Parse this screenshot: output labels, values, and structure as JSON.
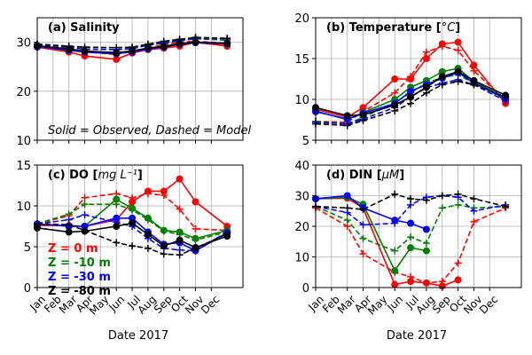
{
  "figure": {
    "footnote": "Solid = Observed, Dashed = Model",
    "xlabel": "Date 2017"
  },
  "chart_data": [
    {
      "type": "line",
      "title": "(a) Salinity",
      "title_bold": "(a) Salinity",
      "title_unit": "",
      "ylim": [
        10,
        35
      ],
      "yticks": [
        10,
        20,
        30
      ],
      "show_xticklabels": false,
      "grid": true,
      "categories": [
        "Jan",
        "Feb",
        "Mar",
        "Apr",
        "May",
        "Jun",
        "Jul",
        "Aug",
        "Sep",
        "Oct",
        "Nov",
        "Dec"
      ],
      "annotation": "Solid = Observed, Dashed = Model",
      "series": [
        {
          "color": "#ff0000",
          "style": "solid",
          "marker": "circle",
          "x": [
            0,
            2,
            3,
            5,
            6,
            7,
            8,
            9,
            10,
            12
          ],
          "values": [
            29.0,
            28.0,
            27.2,
            26.5,
            27.8,
            28.5,
            28.8,
            29.2,
            30.0,
            29.2
          ]
        },
        {
          "color": "#ff0000",
          "style": "dashed",
          "marker": "plus",
          "x": [
            0,
            2,
            3,
            5,
            6,
            7,
            8,
            9,
            10,
            12
          ],
          "values": [
            29.5,
            28.8,
            28.0,
            27.5,
            28.2,
            28.8,
            29.5,
            30.0,
            30.2,
            29.8
          ]
        },
        {
          "color": "#008000",
          "style": "solid",
          "marker": "circle",
          "x": [
            0,
            2,
            3,
            5,
            6,
            7,
            8,
            9,
            10,
            12
          ],
          "values": [
            29.2,
            28.3,
            28.0,
            27.6,
            28.2,
            28.8,
            29.2,
            29.7,
            30.0,
            29.6
          ]
        },
        {
          "color": "#008000",
          "style": "dashed",
          "marker": "plus",
          "x": [
            0,
            2,
            3,
            5,
            6,
            7,
            8,
            9,
            10,
            12
          ],
          "values": [
            29.5,
            28.9,
            28.6,
            28.5,
            28.8,
            29.4,
            29.8,
            30.3,
            30.7,
            30.4
          ]
        },
        {
          "color": "#0000ff",
          "style": "solid",
          "marker": "circle",
          "x": [
            0,
            2,
            3,
            5,
            6,
            7,
            8,
            9,
            10,
            12
          ],
          "values": [
            29.1,
            28.4,
            28.0,
            27.7,
            28.0,
            28.6,
            29.0,
            29.6,
            29.9,
            29.7
          ]
        },
        {
          "color": "#0000ff",
          "style": "dashed",
          "marker": "plus",
          "x": [
            0,
            2,
            3,
            5,
            6,
            7,
            8,
            9,
            10,
            12
          ],
          "values": [
            29.6,
            29.0,
            28.6,
            28.5,
            28.7,
            29.4,
            29.9,
            30.4,
            30.8,
            30.7
          ]
        },
        {
          "color": "#000000",
          "style": "solid",
          "marker": "circle",
          "x": [
            0,
            2,
            3,
            5,
            6,
            7,
            8,
            9,
            10,
            12
          ],
          "values": [
            29.3,
            28.6,
            28.2,
            27.9,
            28.2,
            28.8,
            29.1,
            29.7,
            30.0,
            29.8
          ]
        },
        {
          "color": "#000000",
          "style": "dashed",
          "marker": "plus",
          "x": [
            0,
            2,
            3,
            5,
            6,
            7,
            8,
            9,
            10,
            12
          ],
          "values": [
            29.6,
            29.2,
            29.0,
            28.9,
            29.0,
            29.6,
            30.2,
            30.6,
            31.0,
            30.8
          ]
        }
      ]
    },
    {
      "type": "line",
      "title": "(b) Temperature [°C]",
      "title_bold": "(b) Temperature [",
      "title_unit": "°C",
      "title_close": "]",
      "ylim": [
        5,
        20
      ],
      "yticks": [
        5,
        10,
        15,
        20
      ],
      "show_xticklabels": false,
      "grid": true,
      "categories": [
        "Jan",
        "Feb",
        "Mar",
        "Apr",
        "May",
        "Jun",
        "Jul",
        "Aug",
        "Sep",
        "Oct",
        "Nov",
        "Dec"
      ],
      "series": [
        {
          "color": "#ff0000",
          "style": "solid",
          "marker": "circle",
          "x": [
            0,
            2,
            3,
            5,
            6,
            7,
            8,
            9,
            10,
            12
          ],
          "values": [
            8.8,
            7.8,
            9.0,
            12.5,
            12.5,
            15.0,
            16.8,
            17.0,
            14.2,
            9.5
          ]
        },
        {
          "color": "#ff0000",
          "style": "dashed",
          "marker": "plus",
          "x": [
            0,
            2,
            3,
            5,
            6,
            7,
            8,
            9,
            10,
            12
          ],
          "values": [
            7.3,
            7.2,
            8.5,
            10.8,
            12.8,
            15.8,
            16.5,
            16.0,
            13.5,
            9.8
          ]
        },
        {
          "color": "#008000",
          "style": "solid",
          "marker": "circle",
          "x": [
            0,
            2,
            3,
            5,
            6,
            7,
            8,
            9,
            10,
            12
          ],
          "values": [
            8.6,
            7.5,
            8.4,
            10.0,
            11.5,
            12.3,
            13.4,
            13.8,
            12.2,
            10.2
          ]
        },
        {
          "color": "#008000",
          "style": "dashed",
          "marker": "plus",
          "x": [
            0,
            2,
            3,
            5,
            6,
            7,
            8,
            9,
            10,
            12
          ],
          "values": [
            7.3,
            7.0,
            7.8,
            9.6,
            10.8,
            12.0,
            12.7,
            13.0,
            12.0,
            10.0
          ]
        },
        {
          "color": "#0000ff",
          "style": "solid",
          "marker": "circle",
          "x": [
            0,
            2,
            3,
            5,
            6,
            7,
            8,
            9,
            10,
            12
          ],
          "values": [
            8.5,
            7.6,
            8.3,
            9.5,
            11.0,
            11.8,
            12.6,
            13.3,
            12.0,
            10.1
          ]
        },
        {
          "color": "#0000ff",
          "style": "dashed",
          "marker": "plus",
          "x": [
            0,
            2,
            3,
            5,
            6,
            7,
            8,
            9,
            10,
            12
          ],
          "values": [
            7.2,
            7.0,
            7.6,
            9.0,
            10.3,
            11.4,
            12.0,
            12.4,
            11.8,
            9.8
          ]
        },
        {
          "color": "#000000",
          "style": "solid",
          "marker": "circle",
          "x": [
            0,
            2,
            3,
            5,
            6,
            7,
            8,
            9,
            10,
            12
          ],
          "values": [
            9.0,
            8.0,
            8.1,
            9.3,
            10.3,
            11.5,
            12.8,
            13.4,
            12.3,
            10.5
          ]
        },
        {
          "color": "#000000",
          "style": "dashed",
          "marker": "plus",
          "x": [
            0,
            2,
            3,
            5,
            6,
            7,
            8,
            9,
            10,
            12
          ],
          "values": [
            7.0,
            6.8,
            7.4,
            8.6,
            9.5,
            10.8,
            11.8,
            12.2,
            11.8,
            10.3
          ]
        }
      ]
    },
    {
      "type": "line",
      "title": "(c) DO [mg L⁻¹]",
      "title_bold": "(c) DO [",
      "title_unit": "mg L⁻¹",
      "title_close": "]",
      "ylim": [
        0,
        15
      ],
      "yticks": [
        0,
        5,
        10,
        15
      ],
      "show_xticklabels": true,
      "grid": true,
      "categories": [
        "Jan",
        "Feb",
        "Mar",
        "Apr",
        "May",
        "Jun",
        "Jul",
        "Aug",
        "Sep",
        "Oct",
        "Nov",
        "Dec"
      ],
      "legend": {
        "position": "lower-left",
        "entries": [
          {
            "label": "Z =   0 m",
            "color": "#ff0000"
          },
          {
            "label": "Z =  -10 m",
            "color": "#008000"
          },
          {
            "label": "Z =  -30 m",
            "color": "#0000ff"
          },
          {
            "label": "Z =  -80 m",
            "color": "#000000"
          }
        ]
      },
      "series": [
        {
          "color": "#ff0000",
          "style": "solid",
          "marker": "circle",
          "x": [
            0,
            2,
            3,
            5,
            6,
            7,
            8,
            9,
            10,
            12
          ],
          "values": [
            7.6,
            7.6,
            7.5,
            8.3,
            10.5,
            11.8,
            11.8,
            13.3,
            10.5,
            7.5
          ]
        },
        {
          "color": "#ff0000",
          "style": "dashed",
          "marker": "plus",
          "x": [
            0,
            2,
            3,
            5,
            6,
            7,
            8,
            9,
            10,
            12
          ],
          "values": [
            7.8,
            8.8,
            11.0,
            11.5,
            11.0,
            11.5,
            11.3,
            9.6,
            7.2,
            7.0
          ]
        },
        {
          "color": "#008000",
          "style": "solid",
          "marker": "circle",
          "x": [
            0,
            2,
            3,
            5,
            6,
            7,
            8,
            9,
            10,
            12
          ],
          "values": [
            7.8,
            7.5,
            7.5,
            10.8,
            9.7,
            8.5,
            7.0,
            6.8,
            6.0,
            7.0
          ]
        },
        {
          "color": "#008000",
          "style": "dashed",
          "marker": "plus",
          "x": [
            0,
            2,
            3,
            5,
            6,
            7,
            8,
            9,
            10,
            12
          ],
          "values": [
            7.8,
            9.0,
            10.2,
            10.2,
            9.5,
            8.3,
            6.9,
            6.5,
            5.8,
            6.8
          ]
        },
        {
          "color": "#0000ff",
          "style": "solid",
          "marker": "circle",
          "x": [
            0,
            2,
            3,
            5,
            6,
            7,
            8,
            9,
            10,
            12
          ],
          "values": [
            7.8,
            7.5,
            7.5,
            8.5,
            8.5,
            6.8,
            5.3,
            5.5,
            4.5,
            6.7
          ]
        },
        {
          "color": "#0000ff",
          "style": "dashed",
          "marker": "plus",
          "x": [
            0,
            2,
            3,
            5,
            6,
            7,
            8,
            9,
            10,
            12
          ],
          "values": [
            7.8,
            8.3,
            8.9,
            8.0,
            7.5,
            6.0,
            4.8,
            4.6,
            4.5,
            6.8
          ]
        },
        {
          "color": "#000000",
          "style": "solid",
          "marker": "circle",
          "x": [
            0,
            2,
            3,
            5,
            6,
            7,
            8,
            9,
            10,
            12
          ],
          "values": [
            7.3,
            6.8,
            6.9,
            7.5,
            7.9,
            6.5,
            5.1,
            5.8,
            4.9,
            6.3
          ]
        },
        {
          "color": "#000000",
          "style": "dashed",
          "marker": "plus",
          "x": [
            0,
            2,
            3,
            5,
            6,
            7,
            8,
            9,
            10,
            12
          ],
          "values": [
            7.8,
            7.7,
            7.0,
            5.5,
            5.1,
            4.8,
            4.1,
            4.0,
            4.8,
            6.6
          ]
        }
      ]
    },
    {
      "type": "line",
      "title": "(d) DIN [μM]",
      "title_bold": "(d) DIN  [",
      "title_unit": "μM",
      "title_close": "]",
      "ylim": [
        0,
        40
      ],
      "yticks": [
        0,
        10,
        20,
        30,
        40
      ],
      "show_xticklabels": true,
      "grid": true,
      "categories": [
        "Jan",
        "Feb",
        "Mar",
        "Apr",
        "May",
        "Jun",
        "Jul",
        "Aug",
        "Sep",
        "Oct",
        "Nov",
        "Dec"
      ],
      "series": [
        {
          "color": "#ff0000",
          "style": "solid",
          "marker": "circle",
          "x": [
            0,
            2,
            3,
            5,
            6,
            7,
            8,
            9,
            10,
            12
          ],
          "values": [
            29.0,
            29.2,
            26.0,
            1.0,
            2.0,
            1.5,
            0.5,
            2.5,
            0,
            0
          ],
          "count": 8
        },
        {
          "color": "#ff0000",
          "style": "dashed",
          "marker": "plus",
          "x": [
            0,
            2,
            3,
            5,
            6,
            7,
            8,
            9,
            10,
            12
          ],
          "values": [
            26.0,
            20.0,
            11.0,
            5.0,
            3.5,
            1.5,
            2.0,
            8.0,
            21.5,
            26.0
          ]
        },
        {
          "color": "#008000",
          "style": "solid",
          "marker": "circle",
          "x": [
            0,
            2,
            3,
            5,
            6,
            7,
            8,
            9,
            10,
            12
          ],
          "values": [
            29.0,
            29.5,
            27.2,
            5.5,
            13.0,
            12.0,
            15.5,
            15.5,
            0,
            0
          ],
          "count": 6
        },
        {
          "color": "#008000",
          "style": "dashed",
          "marker": "plus",
          "x": [
            0,
            2,
            3,
            5,
            6,
            7,
            8,
            9,
            10,
            12
          ],
          "values": [
            26.5,
            22.0,
            16.0,
            12.0,
            16.5,
            14.5,
            26.0,
            27.0,
            26.0,
            26.5
          ]
        },
        {
          "color": "#0000ff",
          "style": "solid",
          "marker": "circle",
          "x": [
            0,
            2,
            3,
            5,
            6,
            7,
            8,
            9,
            10,
            12
          ],
          "values": [
            29.0,
            30.0,
            26.0,
            22.0,
            21.0,
            19.0,
            0,
            0,
            0,
            0
          ],
          "count": 6
        },
        {
          "color": "#0000ff",
          "style": "dashed",
          "marker": "plus",
          "x": [
            0,
            2,
            3,
            5,
            6,
            7,
            8,
            9,
            10,
            12
          ],
          "values": [
            26.5,
            24.5,
            20.5,
            21.0,
            27.0,
            29.5,
            30.0,
            29.5,
            25.0,
            27.0
          ]
        },
        {
          "color": "#000000",
          "style": "dashed",
          "marker": "plus",
          "x": [
            0,
            2,
            3,
            5,
            6,
            7,
            8,
            9,
            10,
            12
          ],
          "values": [
            26.5,
            26.0,
            25.5,
            30.5,
            29.0,
            28.5,
            30.0,
            30.5,
            29.0,
            26.5
          ]
        }
      ]
    }
  ]
}
